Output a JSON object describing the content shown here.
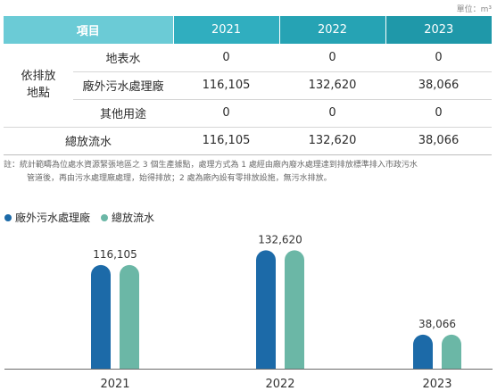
{
  "unit_label": "單位：m³",
  "table": {
    "header": {
      "item": "項目",
      "years": [
        "2021",
        "2022",
        "2023"
      ]
    },
    "group_label": "依排放地點",
    "group_label_lines": [
      "依排放",
      "地點"
    ],
    "rows": [
      {
        "label": "地表水",
        "values": [
          "0",
          "0",
          "0"
        ]
      },
      {
        "label": "廠外污水處理廠",
        "values": [
          "116,105",
          "132,620",
          "38,066"
        ]
      },
      {
        "label": "其他用途",
        "values": [
          "0",
          "0",
          "0"
        ]
      }
    ],
    "total": {
      "label": "總放流水",
      "values": [
        "116,105",
        "132,620",
        "38,066"
      ]
    }
  },
  "note": {
    "line1": "註：統計範疇為位處水資源緊張地區之 3 個生產據點，處理方式為 1 處經由廠內廢水處理達到排放標準排入市政污水",
    "line2": "管道後，再由污水處理廠處理，始得排放；2 處為廠內設有零排放設施，無污水排放。"
  },
  "chart_data": {
    "type": "bar",
    "categories": [
      "2021",
      "2022",
      "2023"
    ],
    "series": [
      {
        "name": "廠外污水處理廠",
        "values": [
          116105,
          132620,
          38066
        ],
        "color": "#1c6aa8"
      },
      {
        "name": "總放流水",
        "values": [
          116105,
          132620,
          38066
        ],
        "color": "#6bb7a6"
      }
    ],
    "data_labels": [
      "116,105",
      "132,620",
      "38,066"
    ],
    "legend": "top-left",
    "ylim": [
      0,
      150000
    ],
    "grid": false
  }
}
